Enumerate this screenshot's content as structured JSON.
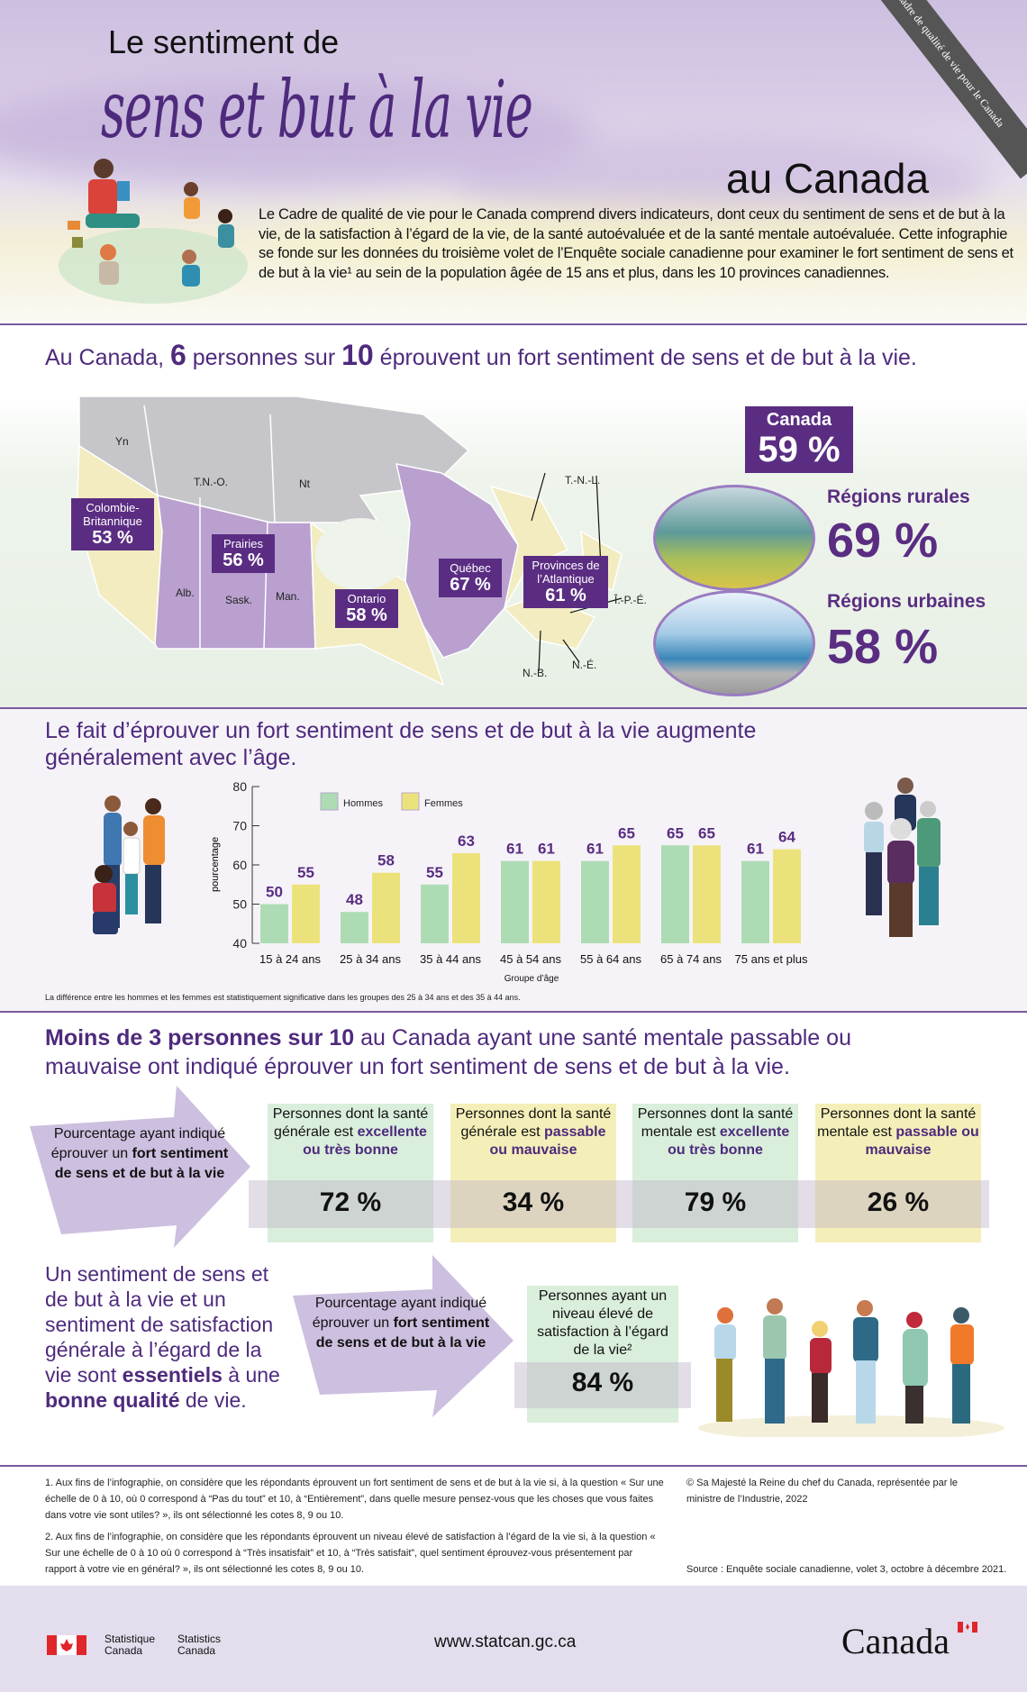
{
  "header": {
    "title_line1": "Le sentiment de",
    "title_script": "sens et but à la vie",
    "title_line3": "au Canada",
    "ribbon": "Le Cadre de qualité de vie pour le Canada",
    "intro": "Le Cadre de qualité de vie pour le Canada comprend divers indicateurs, dont ceux du sentiment de sens et de but à la vie, de la satisfaction à l’égard de la vie, de la santé autoévaluée et de la santé mentale autoévaluée. Cette infographie se fonde sur les données du troisième volet de l’Enquête sociale canadienne pour examiner le fort sentiment de sens et de but à la vie¹ au sein de la population âgée de 15 ans et plus, dans les 10 provinces canadiennes."
  },
  "headline": {
    "pre": "Au Canada, ",
    "n1": "6",
    "mid": " personnes sur ",
    "n2": "10",
    "post": " éprouvent un fort sentiment de sens et de but à la vie."
  },
  "map": {
    "territories": [
      "Yn",
      "T.N.-O.",
      "Nt"
    ],
    "provinces_small": [
      "Alb.",
      "Sask.",
      "Man.",
      "T.-N.-L.",
      "Î.-P.-É.",
      "N.-É.",
      "N.-B."
    ],
    "regions": [
      {
        "name": "Colombie-Britannique",
        "value": "53 %"
      },
      {
        "name": "Prairies",
        "value": "56 %"
      },
      {
        "name": "Ontario",
        "value": "58 %"
      },
      {
        "name": "Québec",
        "value": "67 %"
      },
      {
        "name": "Provinces de l’Atlantique",
        "value": "61 %"
      }
    ],
    "colors": {
      "purple": "#b9a0cf",
      "yellow": "#f2ecc0",
      "gray": "#c4c4c8"
    }
  },
  "national": {
    "label": "Canada",
    "value": "59 %"
  },
  "rural": {
    "label": "Régions rurales",
    "value": "69 %"
  },
  "urban": {
    "label": "Régions urbaines",
    "value": "58 %"
  },
  "chart_title": "Le fait d’éprouver un fort sentiment de sens et de but à la vie augmente généralement avec l’âge.",
  "chart_data": {
    "type": "bar",
    "categories": [
      "15 à 24 ans",
      "25 à 34 ans",
      "35 à 44 ans",
      "45 à 54 ans",
      "55 à 64 ans",
      "65 à 74 ans",
      "75 ans et plus"
    ],
    "series": [
      {
        "name": "Hommes",
        "values": [
          50,
          48,
          55,
          61,
          61,
          65,
          61
        ],
        "color": "#addcb4"
      },
      {
        "name": "Femmes",
        "values": [
          55,
          58,
          63,
          61,
          65,
          65,
          64
        ],
        "color": "#ece27c"
      }
    ],
    "xlabel": "Groupe d’âge",
    "ylabel": "pourcentage",
    "ylim": [
      40,
      80
    ],
    "yticks": [
      "40",
      "50",
      "60",
      "70",
      "80"
    ],
    "legend": "top-left",
    "grid": false
  },
  "chart_note": "La différence entre les hommes et les femmes est statistiquement significative dans les groupes des 25 à 34 ans et des 35 à 44 ans.",
  "mental": {
    "headline_bold": "Moins de 3 personnes sur 10",
    "headline_rest": " au Canada ayant une santé mentale passable ou mauvaise ont indiqué éprouver un fort sentiment de sens et de but à la vie.",
    "arrow_plain": "Pourcentage ayant indiqué éprouver un",
    "arrow_bold": "fort sentiment de sens et de but à la vie",
    "cards": [
      {
        "pre": "Personnes dont la santé générale est ",
        "bold": "excellente ou très bonne",
        "value": "72 %",
        "color": "#d9eedb"
      },
      {
        "pre": "Personnes dont la santé générale est ",
        "bold": "passable ou mauvaise",
        "value": "34 %",
        "color": "#f4efb8"
      },
      {
        "pre": "Personnes dont la santé mentale est ",
        "bold": "excellente ou très bonne",
        "value": "79 %",
        "color": "#d9eedb"
      },
      {
        "pre": "Personnes dont la santé mentale est ",
        "bold": "passable ou mauvaise",
        "value": "26 %",
        "color": "#f4efb8"
      }
    ]
  },
  "essential": {
    "p1": "Un sentiment de sens et de but à la vie et un sentiment de satisfaction générale à l’égard de la vie sont ",
    "b1": "essentiels",
    "p2": " à une ",
    "b2": "bonne qualité",
    "p3": " de vie."
  },
  "satisfaction": {
    "text": "Personnes ayant un niveau élevé de satisfaction à l’égard de la vie²",
    "value": "84 %"
  },
  "footnotes": {
    "n1": "1. Aux fins de l’infographie, on considère que les répondants éprouvent un fort sentiment de sens et de but à la vie si, à la question « Sur une échelle de 0 à 10, où 0 correspond à “Pas du tout” et 10, à “Entièrement”, dans quelle mesure pensez-vous que les choses que vous faites dans votre vie sont utiles? », ils ont sélectionné les cotes 8, 9 ou 10.",
    "n2": "2. Aux fins de l’infographie, on considère que les répondants éprouvent un niveau élevé de satisfaction à l’égard de la vie si, à la question « Sur une échelle de 0 à 10 où 0 correspond à “Très insatisfait” et 10, à “Très satisfait”, quel sentiment éprouvez-vous présentement par rapport à votre vie en général? », ils ont sélectionné les cotes 8, 9 ou 10.",
    "copyright": "© Sa Majesté la Reine du chef du Canada, représentée par le ministre de l’Industrie, 2022",
    "source": "Source : Enquête sociale canadienne, volet 3, octobre à décembre 2021."
  },
  "footer": {
    "sc_fr1": "Statistique",
    "sc_fr2": "Canada",
    "sc_en1": "Statistics",
    "sc_en2": "Canada",
    "url": "www.statcan.gc.ca",
    "wordmark": "Canada"
  }
}
